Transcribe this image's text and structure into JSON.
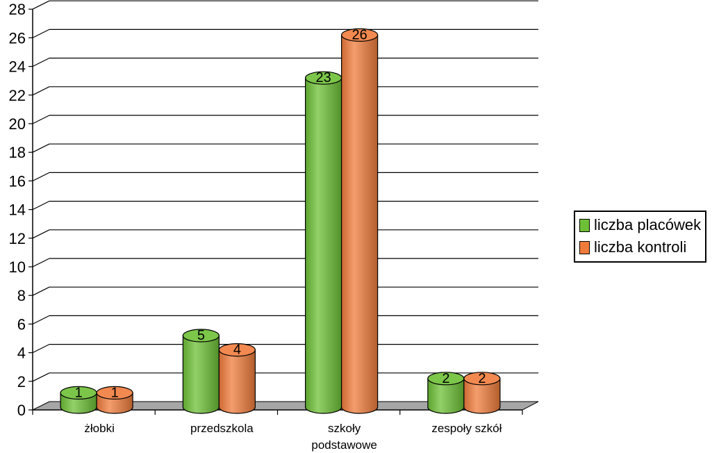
{
  "chart_data": {
    "type": "bar",
    "categories": [
      "żłobki",
      "przedszkola",
      "szkoły podstawowe",
      "zespoły szkół"
    ],
    "category_lines": [
      [
        "żłobki"
      ],
      [
        "przedszkola"
      ],
      [
        "szkoły",
        "podstawowe"
      ],
      [
        "zespoły szkół"
      ]
    ],
    "series": [
      {
        "name": "liczba placówek",
        "values": [
          1,
          5,
          23,
          2
        ],
        "color": "#6dc036"
      },
      {
        "name": "liczba kontroli",
        "values": [
          1,
          4,
          26,
          2
        ],
        "color": "#f07c3c"
      }
    ],
    "yticks": [
      "0",
      "2",
      "4",
      "6",
      "8",
      "10",
      "12",
      "14",
      "16",
      "18",
      "20",
      "22",
      "24",
      "26",
      "28"
    ],
    "ylim": [
      0,
      28
    ],
    "grid": true,
    "legend_position": "right",
    "floor_color": "#a6a6a6"
  }
}
